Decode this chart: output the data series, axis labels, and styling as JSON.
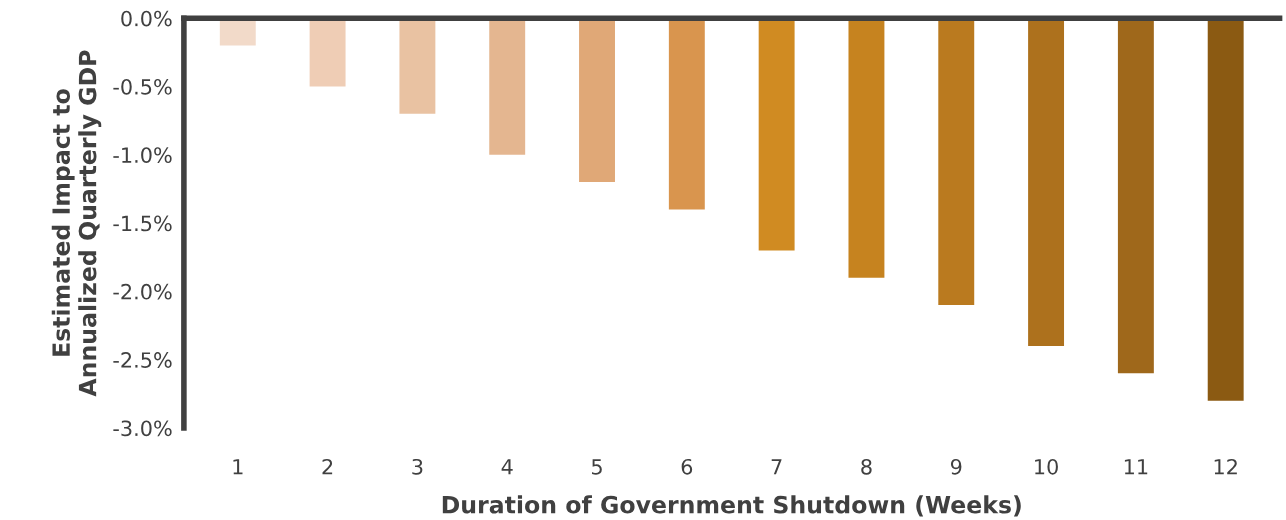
{
  "chart_data": {
    "type": "bar",
    "xlabel": "Duration of Government Shutdown (Weeks)",
    "ylabel": "Estimated Impact to\nAnnualized Quarterly GDP",
    "categories": [
      "1",
      "2",
      "3",
      "4",
      "5",
      "6",
      "7",
      "8",
      "9",
      "10",
      "11",
      "12"
    ],
    "values": [
      -0.2,
      -0.5,
      -0.7,
      -1.0,
      -1.2,
      -1.4,
      -1.7,
      -1.9,
      -2.1,
      -2.4,
      -2.6,
      -2.8
    ],
    "colors": [
      "#f2dac9",
      "#efcdb5",
      "#e9c2a2",
      "#e4b690",
      "#e0a877",
      "#d9954e",
      "#d08b22",
      "#c6831f",
      "#ba7a1f",
      "#ad711d",
      "#9f681b",
      "#8b5a12"
    ],
    "ylim": [
      -3.0,
      0
    ],
    "yticks": [
      {
        "value": 0,
        "label": "0.0%"
      },
      {
        "value": -0.5,
        "label": "-0.5%"
      },
      {
        "value": -1.0,
        "label": "-1.0%"
      },
      {
        "value": -1.5,
        "label": "-1.5%"
      },
      {
        "value": -2.0,
        "label": "-2.0%"
      },
      {
        "value": -2.5,
        "label": "-2.5%"
      },
      {
        "value": -3.0,
        "label": "-3.0%"
      }
    ],
    "grid": false,
    "legend": false
  }
}
